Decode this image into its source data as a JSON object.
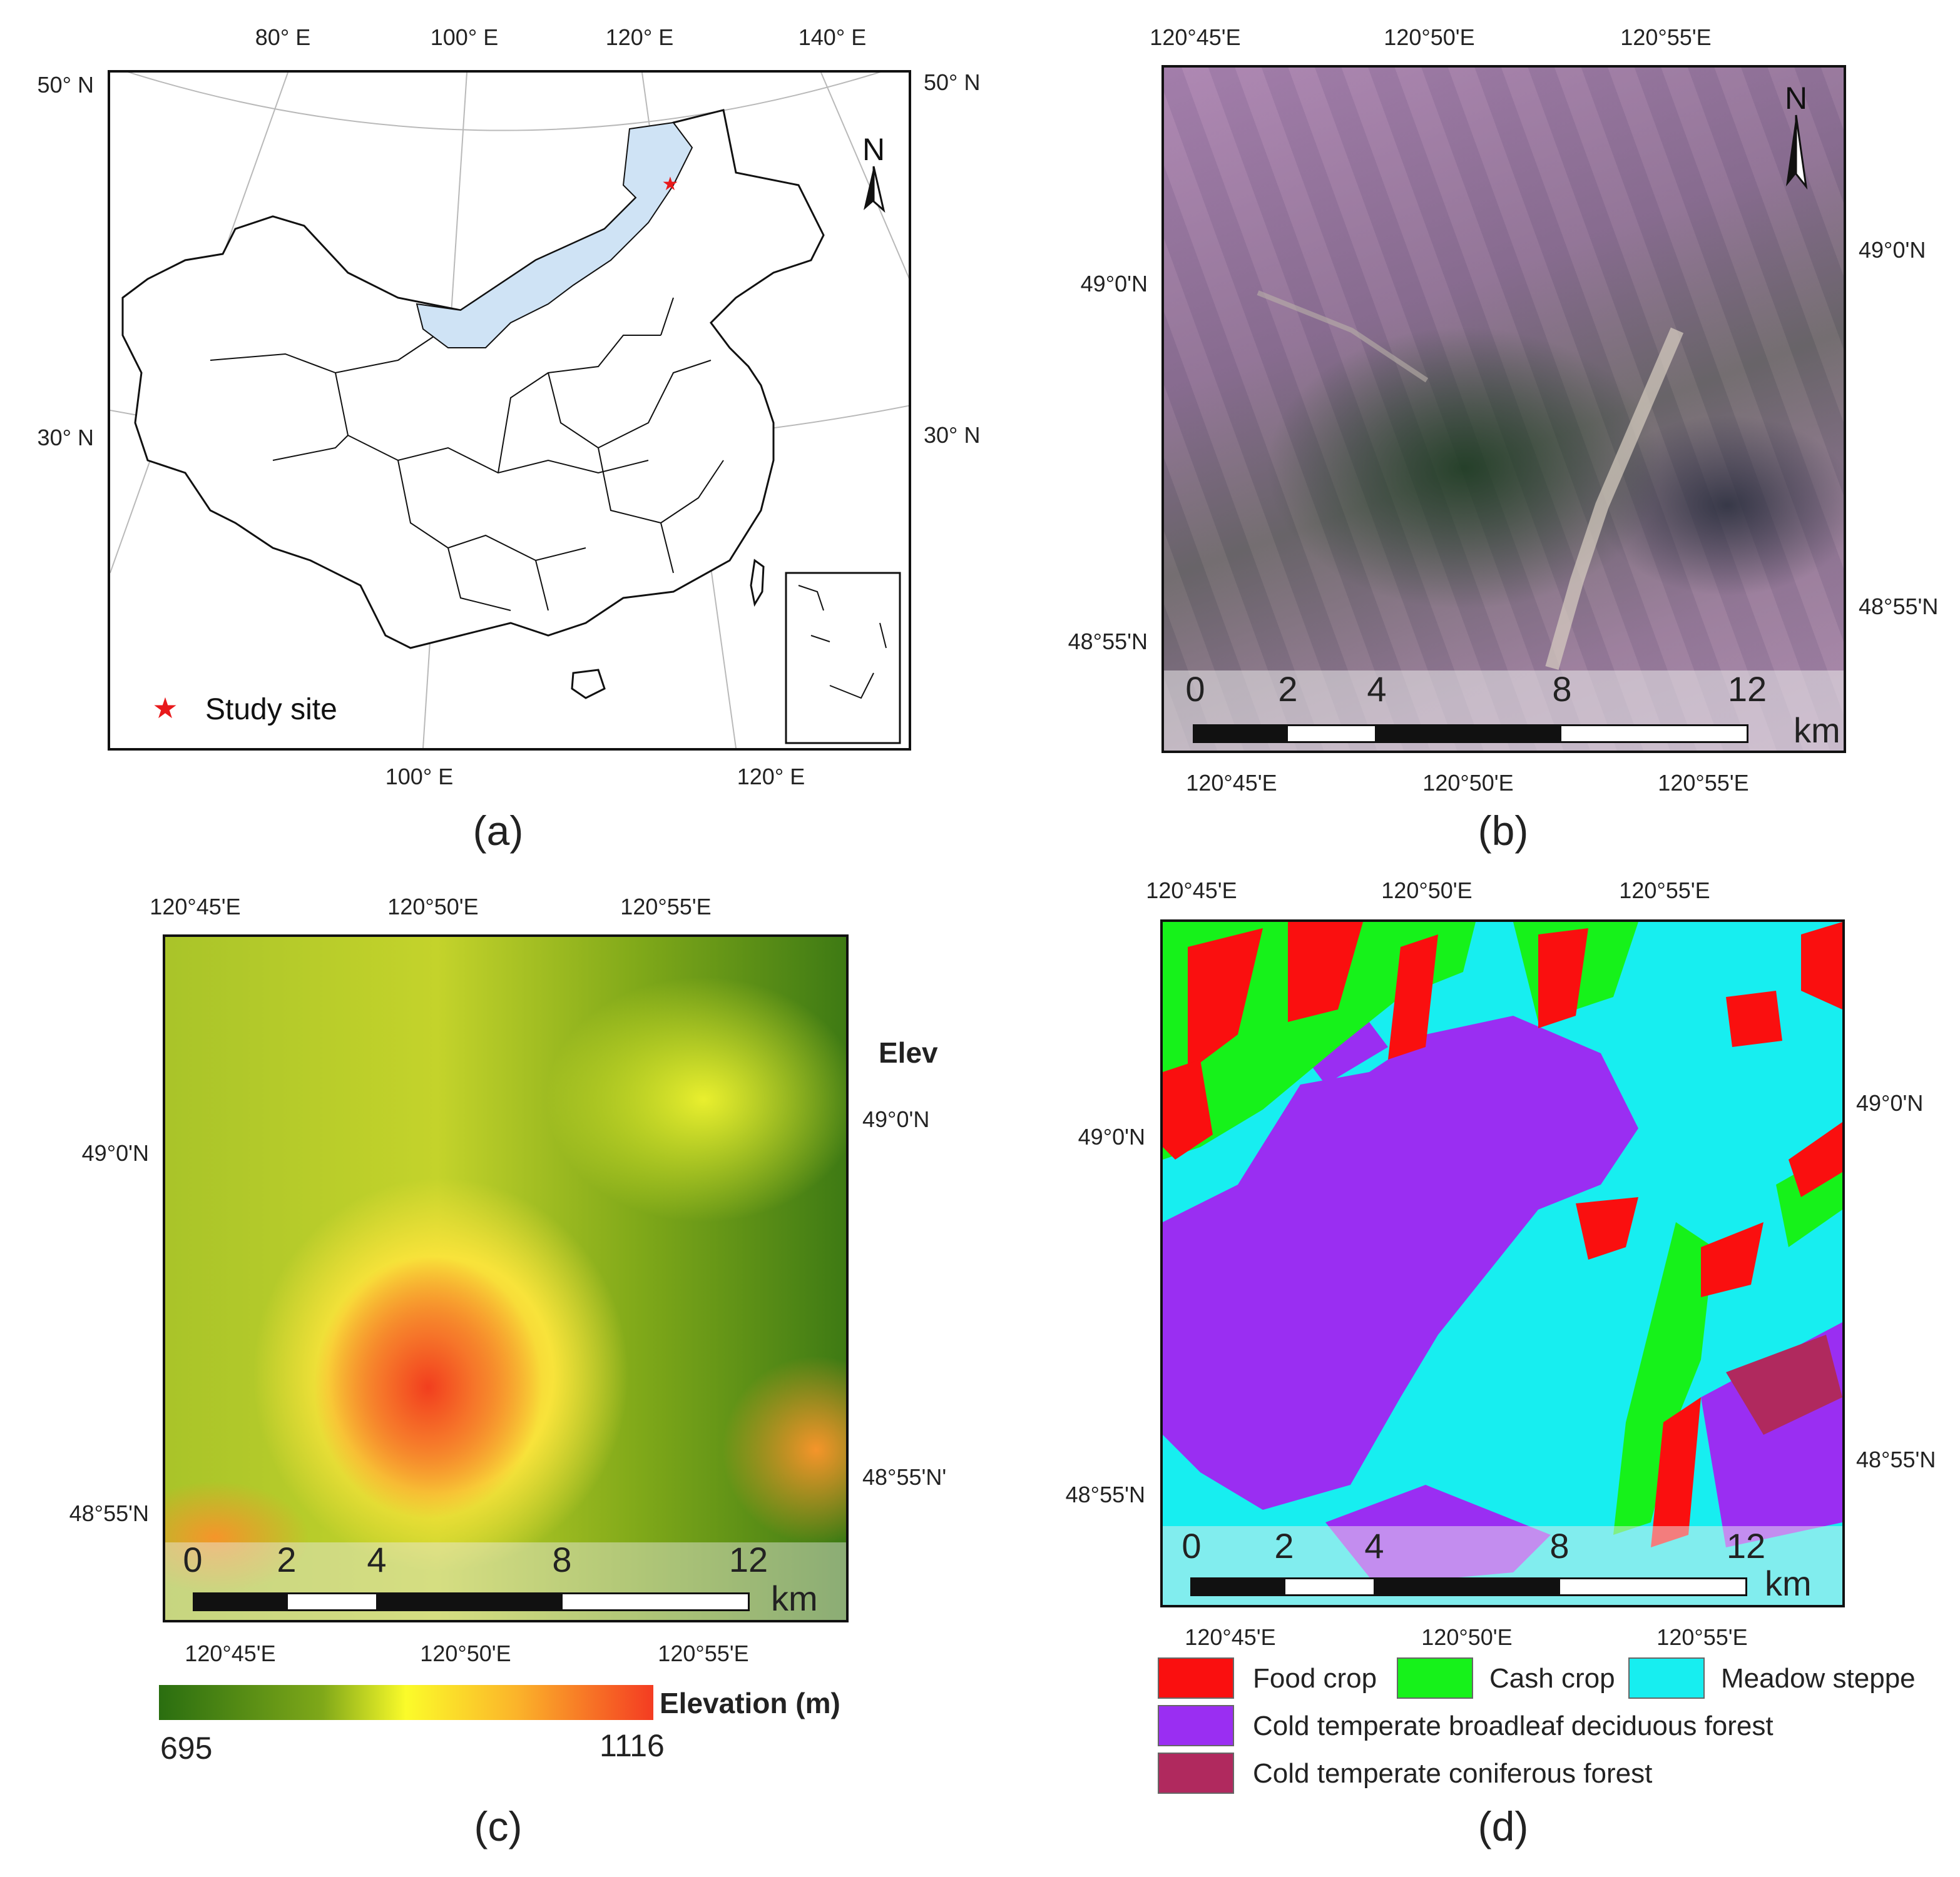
{
  "panels": {
    "a": {
      "letter": "(a)",
      "top_ticks": [
        "80° E",
        "100° E",
        "120° E",
        "140° E"
      ],
      "bottom_ticks": [
        "100° E",
        "120° E"
      ],
      "left_ticks": [
        "50° N",
        "30° N"
      ],
      "right_ticks": [
        "50° N",
        "30° N"
      ],
      "north_label": "N",
      "legend_label": "Study site",
      "highlight_color": "#cfe3f5",
      "star_color": "#e8191b"
    },
    "b": {
      "letter": "(b)",
      "top_ticks": [
        "120°45'E",
        "120°50'E",
        "120°55'E"
      ],
      "bottom_ticks": [
        "120°45'E",
        "120°50'E",
        "120°55'E"
      ],
      "left_ticks": [
        "49°0'N",
        "48°55'N"
      ],
      "right_ticks": [
        "49°0'N",
        "48°55'N"
      ],
      "north_label": "N",
      "scale": {
        "labels": [
          "0",
          "2",
          "4",
          "8",
          "12"
        ],
        "unit": "km"
      }
    },
    "c": {
      "letter": "(c)",
      "top_ticks": [
        "120°45'E",
        "120°50'E",
        "120°55'E"
      ],
      "bottom_ticks": [
        "120°45'E",
        "120°50'E",
        "120°55'E"
      ],
      "left_ticks": [
        "49°0'N",
        "48°55'N"
      ],
      "right_ticks": [
        "49°0'N",
        "48°55'N'"
      ],
      "clipped_label": "Elev",
      "scale": {
        "labels": [
          "0",
          "2",
          "4",
          "8",
          "12"
        ],
        "unit": "km"
      },
      "colorbar": {
        "title": "Elevation (m)",
        "min": "695",
        "max": "1116",
        "colors": [
          "#2a6e10",
          "#7fa819",
          "#fbfb2a",
          "#fbb52a",
          "#f43c22"
        ]
      }
    },
    "d": {
      "letter": "(d)",
      "top_ticks": [
        "120°45'E",
        "120°50'E",
        "120°55'E"
      ],
      "bottom_ticks": [
        "120°45'E",
        "120°50'E",
        "120°55'E"
      ],
      "left_ticks": [
        "49°0'N",
        "48°55'N"
      ],
      "right_ticks": [
        "49°0'N",
        "48°55'N"
      ],
      "scale": {
        "labels": [
          "0",
          "2",
          "4",
          "8",
          "12"
        ],
        "unit": "km"
      },
      "legend": [
        {
          "label": "Food crop",
          "color": "#fa0f0f"
        },
        {
          "label": "Cash crop",
          "color": "#16f21a"
        },
        {
          "label": "Meadow steppe",
          "color": "#17eef0"
        },
        {
          "label": "Cold temperate broadleaf deciduous forest",
          "color": "#9a2ef2"
        },
        {
          "label": "Cold temperate coniferous forest",
          "color": "#b0295e"
        }
      ]
    }
  }
}
